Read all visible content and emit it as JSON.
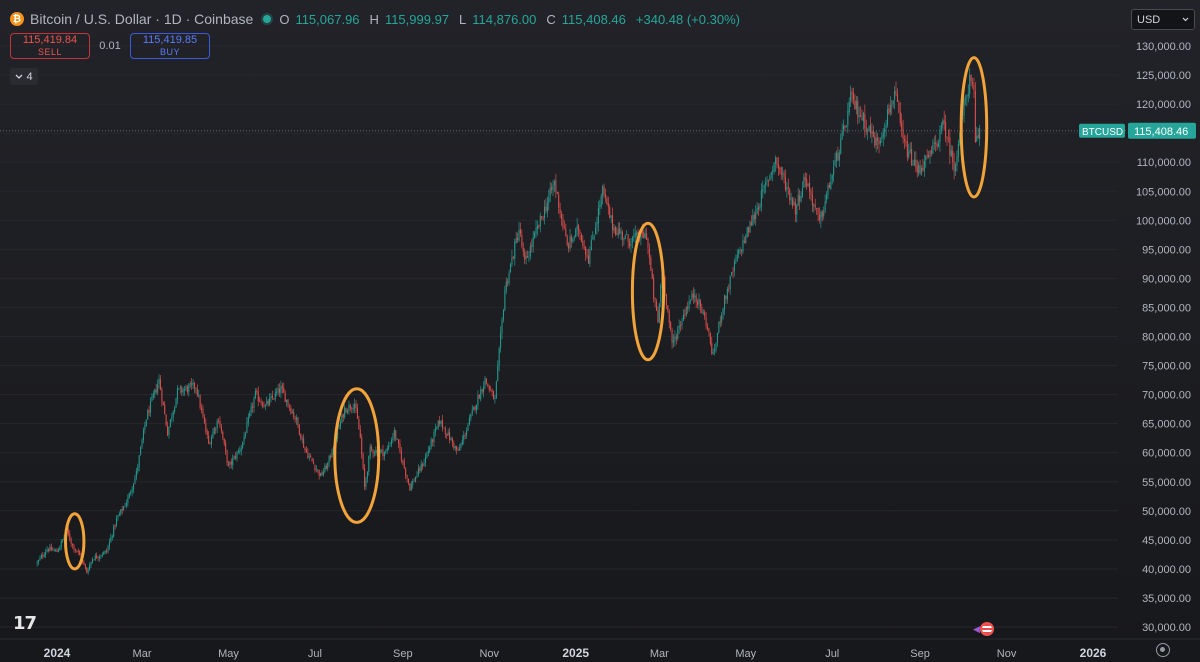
{
  "header": {
    "symbol_title": "Bitcoin / U.S. Dollar · 1D · Coinbase",
    "logo_glyph": "₿",
    "ohlc": [
      {
        "key": "O",
        "value": "115,067.96"
      },
      {
        "key": "H",
        "value": "115,999.97"
      },
      {
        "key": "L",
        "value": "114,876.00"
      },
      {
        "key": "C",
        "value": "115,408.46"
      },
      {
        "key": "",
        "value": "+340.48 (+0.30%)"
      }
    ]
  },
  "trade": {
    "sell_price": "115,419.84",
    "sell_label": "SELL",
    "spread": "0.01",
    "buy_price": "115,419.85",
    "buy_label": "BUY"
  },
  "indicators_collapse": {
    "icon": "chevron-down-icon",
    "count": "4"
  },
  "currency": {
    "selected": "USD"
  },
  "branding": {
    "logo_text": "17"
  },
  "colors": {
    "up": "#26a69a",
    "down": "#ef5350",
    "highlight": "#f2a33a",
    "price_tag": "#26a69a"
  },
  "chart_data": {
    "type": "candlestick",
    "title": "Bitcoin / U.S. Dollar · 1D · Coinbase",
    "last_price_label": "BTCUSD",
    "last_price": "115,408.46",
    "last_price_value": 115408.46,
    "ylim": [
      28000,
      133000
    ],
    "y_ticks": [
      30000,
      35000,
      40000,
      45000,
      50000,
      55000,
      60000,
      65000,
      70000,
      75000,
      80000,
      85000,
      90000,
      95000,
      100000,
      105000,
      110000,
      115000,
      120000,
      125000,
      130000
    ],
    "y_tick_labels": [
      "30,000.00",
      "35,000.00",
      "40,000.00",
      "45,000.00",
      "50,000.00",
      "55,000.00",
      "60,000.00",
      "65,000.00",
      "70,000.00",
      "75,000.00",
      "80,000.00",
      "85,000.00",
      "90,000.00",
      "95,000.00",
      "100,000.00",
      "105,000.00",
      "110,000.00",
      "115,000.00",
      "120,000.00",
      "125,000.00",
      "130,000.00"
    ],
    "x_range": [
      "2023-12-18",
      "2026-01-15"
    ],
    "x_ticks": [
      {
        "date": "2024-01-01",
        "label": "2024",
        "bold": true
      },
      {
        "date": "2024-03-01",
        "label": "Mar",
        "bold": false
      },
      {
        "date": "2024-05-01",
        "label": "May",
        "bold": false
      },
      {
        "date": "2024-07-01",
        "label": "Jul",
        "bold": false
      },
      {
        "date": "2024-09-01",
        "label": "Sep",
        "bold": false
      },
      {
        "date": "2024-11-01",
        "label": "Nov",
        "bold": false
      },
      {
        "date": "2025-01-01",
        "label": "2025",
        "bold": true
      },
      {
        "date": "2025-03-01",
        "label": "Mar",
        "bold": false
      },
      {
        "date": "2025-05-01",
        "label": "May",
        "bold": false
      },
      {
        "date": "2025-07-01",
        "label": "Jul",
        "bold": false
      },
      {
        "date": "2025-09-01",
        "label": "Sep",
        "bold": false
      },
      {
        "date": "2025-11-01",
        "label": "Nov",
        "bold": false
      },
      {
        "date": "2026-01-01",
        "label": "2026",
        "bold": true
      }
    ],
    "price_path": [
      [
        "2023-12-18",
        41000
      ],
      [
        "2023-12-25",
        43500
      ],
      [
        "2024-01-01",
        43000
      ],
      [
        "2024-01-08",
        46500
      ],
      [
        "2024-01-12",
        44000
      ],
      [
        "2024-01-16",
        42800
      ],
      [
        "2024-01-22",
        39500
      ],
      [
        "2024-01-26",
        41800
      ],
      [
        "2024-02-05",
        43000
      ],
      [
        "2024-02-12",
        48500
      ],
      [
        "2024-02-20",
        52000
      ],
      [
        "2024-02-26",
        56500
      ],
      [
        "2024-03-04",
        66000
      ],
      [
        "2024-03-13",
        72500
      ],
      [
        "2024-03-19",
        63500
      ],
      [
        "2024-03-26",
        70500
      ],
      [
        "2024-04-08",
        71500
      ],
      [
        "2024-04-17",
        61500
      ],
      [
        "2024-04-24",
        66000
      ],
      [
        "2024-05-01",
        57500
      ],
      [
        "2024-05-10",
        61000
      ],
      [
        "2024-05-20",
        70000
      ],
      [
        "2024-05-27",
        68000
      ],
      [
        "2024-06-07",
        71000
      ],
      [
        "2024-06-18",
        65500
      ],
      [
        "2024-06-24",
        60500
      ],
      [
        "2024-07-05",
        56000
      ],
      [
        "2024-07-10",
        58000
      ],
      [
        "2024-07-22",
        67500
      ],
      [
        "2024-07-29",
        68500
      ],
      [
        "2024-08-02",
        62500
      ],
      [
        "2024-08-05",
        54000
      ],
      [
        "2024-08-09",
        60500
      ],
      [
        "2024-08-20",
        60000
      ],
      [
        "2024-08-26",
        63500
      ],
      [
        "2024-09-06",
        54000
      ],
      [
        "2024-09-16",
        58500
      ],
      [
        "2024-09-27",
        65500
      ],
      [
        "2024-10-10",
        60000
      ],
      [
        "2024-10-21",
        67500
      ],
      [
        "2024-10-29",
        72500
      ],
      [
        "2024-11-05",
        69000
      ],
      [
        "2024-11-12",
        88000
      ],
      [
        "2024-11-22",
        98500
      ],
      [
        "2024-11-26",
        92500
      ],
      [
        "2024-12-05",
        98500
      ],
      [
        "2024-12-17",
        106500
      ],
      [
        "2024-12-26",
        95500
      ],
      [
        "2025-01-03",
        98500
      ],
      [
        "2025-01-10",
        93500
      ],
      [
        "2025-01-20",
        105000
      ],
      [
        "2025-01-27",
        99000
      ],
      [
        "2025-02-07",
        96500
      ],
      [
        "2025-02-20",
        97500
      ],
      [
        "2025-02-25",
        87000
      ],
      [
        "2025-02-28",
        82500
      ],
      [
        "2025-03-03",
        92000
      ],
      [
        "2025-03-10",
        78500
      ],
      [
        "2025-03-20",
        85000
      ],
      [
        "2025-03-26",
        87500
      ],
      [
        "2025-04-03",
        82500
      ],
      [
        "2025-04-08",
        76500
      ],
      [
        "2025-04-14",
        84500
      ],
      [
        "2025-04-24",
        93000
      ],
      [
        "2025-05-08",
        101500
      ],
      [
        "2025-05-22",
        110500
      ],
      [
        "2025-06-05",
        102000
      ],
      [
        "2025-06-12",
        107500
      ],
      [
        "2025-06-22",
        99500
      ],
      [
        "2025-06-30",
        107000
      ],
      [
        "2025-07-10",
        116000
      ],
      [
        "2025-07-14",
        121000
      ],
      [
        "2025-07-25",
        116500
      ],
      [
        "2025-08-02",
        113000
      ],
      [
        "2025-08-14",
        122000
      ],
      [
        "2025-08-20",
        113500
      ],
      [
        "2025-08-30",
        108500
      ],
      [
        "2025-09-08",
        111000
      ],
      [
        "2025-09-18",
        116500
      ],
      [
        "2025-09-25",
        109000
      ],
      [
        "2025-10-03",
        121000
      ],
      [
        "2025-10-06",
        124000
      ],
      [
        "2025-10-09",
        121500
      ],
      [
        "2025-10-10",
        113000
      ],
      [
        "2025-10-13",
        115408
      ]
    ],
    "highlights": [
      {
        "x": [
          "2024-01-07",
          "2024-01-20"
        ],
        "y": [
          40000,
          49500
        ]
      },
      {
        "x": [
          "2024-07-15",
          "2024-08-15"
        ],
        "y": [
          48000,
          71000
        ]
      },
      {
        "x": [
          "2025-02-10",
          "2025-03-04"
        ],
        "y": [
          76000,
          99500
        ]
      },
      {
        "x": [
          "2025-09-30",
          "2025-10-18"
        ],
        "y": [
          104000,
          128000
        ]
      }
    ]
  }
}
